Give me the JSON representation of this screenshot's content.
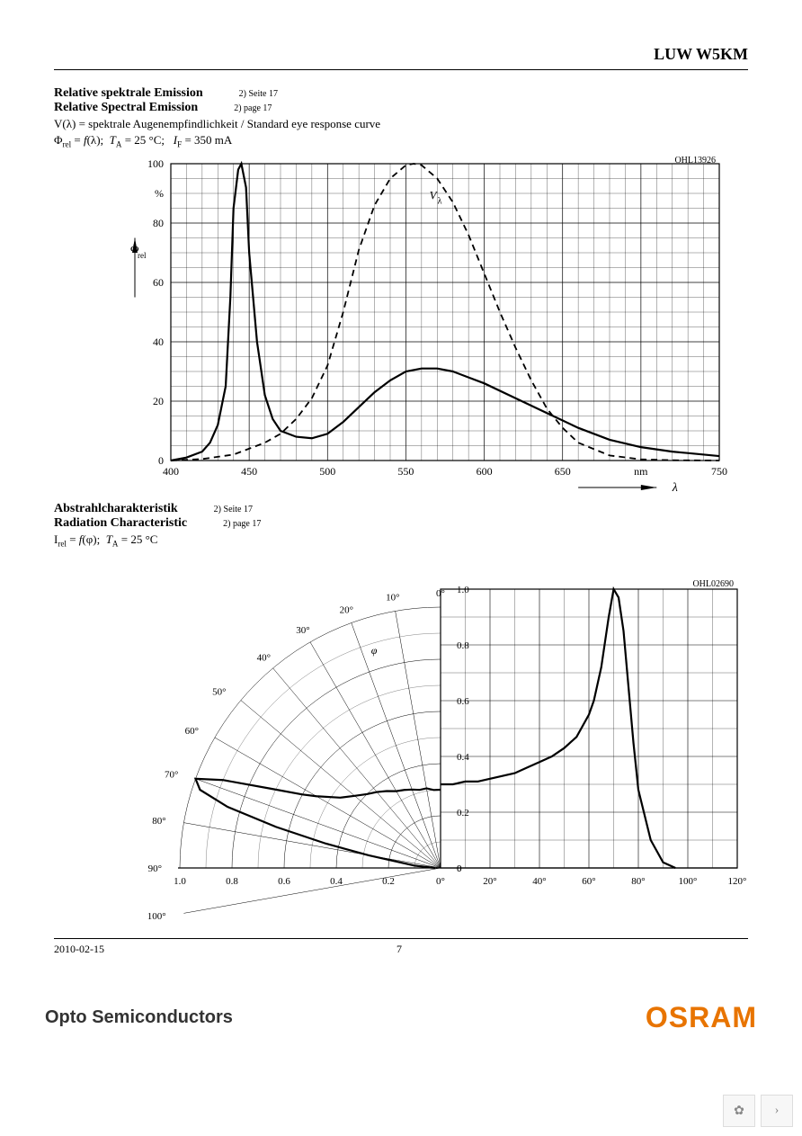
{
  "header": {
    "product": "LUW W5KM"
  },
  "chart1": {
    "type": "line",
    "title_de": "Relative spektrale Emission",
    "title_en": "Relative Spectral Emission",
    "footnote_de": "2) Seite 17",
    "footnote_en": "2) page 17",
    "formula1": "V(λ) =  spektrale Augenempfindlichkeit / Standard eye response curve",
    "formula2": "Φ_rel = f(λ);  T_A = 25 °C;    I_F = 350 mA",
    "chart_id": "OHL13926",
    "ylabel_symbol": "Φ_rel",
    "xlabel_symbol": "λ",
    "xlim": [
      400,
      750
    ],
    "xtick_step": 50,
    "x_unit": "nm",
    "ylim": [
      0,
      100
    ],
    "ytick_step": 20,
    "y_unit": "%",
    "background_color": "#ffffff",
    "grid_color": "#000000",
    "grid_width": 0.5,
    "border_color": "#000000",
    "border_width": 1.2,
    "series": [
      {
        "name": "emission",
        "color": "#000000",
        "line_width": 2.2,
        "dash": "none",
        "x": [
          400,
          410,
          420,
          425,
          430,
          435,
          438,
          440,
          443,
          445,
          448,
          450,
          455,
          460,
          465,
          470,
          480,
          490,
          500,
          510,
          520,
          530,
          540,
          550,
          560,
          570,
          580,
          590,
          600,
          620,
          640,
          660,
          680,
          700,
          720,
          750
        ],
        "y": [
          0,
          1,
          3,
          6,
          12,
          25,
          55,
          85,
          98,
          100,
          92,
          70,
          40,
          22,
          14,
          10,
          8,
          7.5,
          9,
          13,
          18,
          23,
          27,
          30,
          31,
          31,
          30,
          28,
          26,
          21,
          16,
          11,
          7,
          4.5,
          3,
          1.5
        ]
      },
      {
        "name": "V_lambda",
        "label": "V_λ",
        "color": "#000000",
        "line_width": 1.8,
        "dash": "7 5",
        "x": [
          400,
          420,
          440,
          460,
          470,
          480,
          490,
          500,
          510,
          520,
          530,
          540,
          550,
          555,
          560,
          570,
          580,
          590,
          600,
          610,
          620,
          630,
          640,
          650,
          660,
          680,
          700,
          720,
          750
        ],
        "y": [
          0,
          0.5,
          2,
          6,
          9,
          14,
          21,
          32,
          50,
          71,
          86,
          95,
          99.5,
          100,
          99.5,
          95,
          87,
          76,
          63,
          50,
          38,
          27,
          17.5,
          11,
          6,
          1.7,
          0.4,
          0.1,
          0
        ]
      }
    ],
    "curve_label": {
      "text": "V_λ",
      "x": 565,
      "y": 88
    }
  },
  "chart2": {
    "type": "polar-cartesian",
    "title_de": "Abstrahlcharakteristik",
    "title_en": "Radiation Characteristic",
    "footnote_de": "2) Seite 17",
    "footnote_en": "2) page 17",
    "formula": "I_rel = f(φ);  T_A = 25 °C",
    "chart_id": "OHL02690",
    "angle_symbol": "φ",
    "background_color": "#ffffff",
    "grid_color": "#000000",
    "grid_width": 0.5,
    "border_color": "#000000",
    "border_width": 1.2,
    "polar": {
      "angle_labels": [
        0,
        10,
        20,
        30,
        40,
        50,
        60,
        70,
        80,
        90,
        100
      ],
      "radial_labels": [
        0,
        0.2,
        0.4,
        0.6,
        0.8,
        1.0
      ],
      "x_axis_labels": [
        "1.0",
        "0.8",
        "0.6",
        "0.4",
        "0.2",
        "0°"
      ]
    },
    "cartesian": {
      "xlim": [
        0,
        120
      ],
      "xtick_step": 20,
      "x_unit": "°",
      "ylim": [
        0,
        1.0
      ],
      "ytick_step": 0.2
    },
    "curve_polar": {
      "color": "#000000",
      "line_width": 2.2,
      "angle": [
        0,
        5,
        10,
        15,
        20,
        25,
        30,
        35,
        40,
        45,
        50,
        55,
        60,
        62,
        65,
        68,
        70,
        72,
        74,
        76,
        78,
        80,
        85,
        90
      ],
      "r": [
        0.3,
        0.3,
        0.31,
        0.31,
        0.32,
        0.33,
        0.34,
        0.36,
        0.38,
        0.4,
        0.43,
        0.47,
        0.55,
        0.6,
        0.72,
        0.9,
        1.0,
        0.97,
        0.85,
        0.65,
        0.45,
        0.28,
        0.1,
        0.02
      ]
    },
    "curve_cartesian": {
      "color": "#000000",
      "line_width": 2.2,
      "x": [
        0,
        5,
        10,
        15,
        20,
        25,
        30,
        35,
        40,
        45,
        50,
        55,
        60,
        62,
        65,
        68,
        70,
        72,
        74,
        76,
        78,
        80,
        85,
        90,
        95
      ],
      "y": [
        0.3,
        0.3,
        0.31,
        0.31,
        0.32,
        0.33,
        0.34,
        0.36,
        0.38,
        0.4,
        0.43,
        0.47,
        0.55,
        0.6,
        0.72,
        0.9,
        1.0,
        0.97,
        0.85,
        0.65,
        0.45,
        0.28,
        0.1,
        0.02,
        0
      ]
    }
  },
  "footer": {
    "date": "2010-02-15",
    "page": "7"
  },
  "brand": {
    "left": "Opto Semiconductors",
    "right": "OSRAM",
    "right_color": "#e87400"
  }
}
